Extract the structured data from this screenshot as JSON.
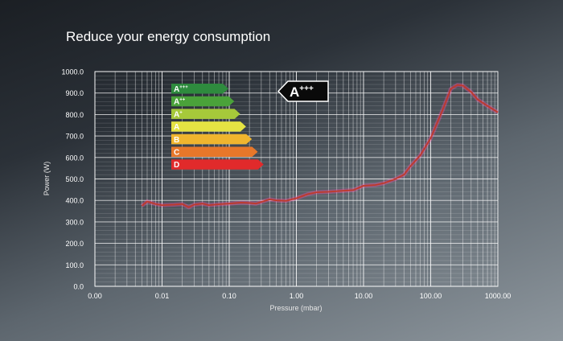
{
  "chart_data": {
    "type": "line",
    "title": "Reduce your energy consumption",
    "xlabel": "Pressure (mbar)",
    "ylabel": "Power (W)",
    "x_scale": "log",
    "xlim": [
      0.001,
      1000
    ],
    "ylim": [
      0,
      1000
    ],
    "x_tick_labels": [
      "0.00",
      "0.01",
      "0.10",
      "1.00",
      "10.00",
      "100.00",
      "1000.00"
    ],
    "x_ticks": [
      0.001,
      0.01,
      0.1,
      1,
      10,
      100,
      1000
    ],
    "y_tick_labels": [
      "0.0",
      "100.0",
      "200.0",
      "300.0",
      "400.0",
      "500.0",
      "600.0",
      "700.0",
      "800.0",
      "900.0",
      "1000.0"
    ],
    "y_ticks": [
      0,
      100,
      200,
      300,
      400,
      500,
      600,
      700,
      800,
      900,
      1000
    ],
    "grid": true,
    "series": [
      {
        "color": "#c0392b",
        "x": [
          0.005,
          0.006,
          0.008,
          0.01,
          0.015,
          0.02,
          0.025,
          0.03,
          0.04,
          0.05,
          0.07,
          0.1,
          0.15,
          0.2,
          0.25,
          0.3,
          0.4,
          0.5,
          0.7,
          1,
          1.5,
          2,
          3,
          5,
          7,
          10,
          15,
          20,
          30,
          40,
          50,
          70,
          100,
          150,
          200,
          250,
          300,
          400,
          500,
          700,
          1000
        ],
        "y": [
          375,
          395,
          383,
          378,
          380,
          383,
          368,
          380,
          385,
          378,
          382,
          385,
          390,
          388,
          385,
          393,
          405,
          400,
          398,
          410,
          430,
          438,
          440,
          445,
          448,
          468,
          472,
          480,
          500,
          520,
          560,
          610,
          690,
          820,
          920,
          938,
          935,
          905,
          870,
          840,
          810
        ]
      }
    ],
    "energy_labels": {
      "classes": [
        {
          "label": "A",
          "superscript": "+++",
          "color": "#2e8b3e"
        },
        {
          "label": "A",
          "superscript": "++",
          "color": "#4aa23a"
        },
        {
          "label": "A",
          "superscript": "+",
          "color": "#a6c93a"
        },
        {
          "label": "A",
          "superscript": "",
          "color": "#e5e343"
        },
        {
          "label": "B",
          "superscript": "",
          "color": "#f0b52e"
        },
        {
          "label": "C",
          "superscript": "",
          "color": "#e7772a"
        },
        {
          "label": "D",
          "superscript": "",
          "color": "#e12a2b"
        }
      ],
      "rating": {
        "label": "A",
        "superscript": "+++"
      }
    }
  }
}
